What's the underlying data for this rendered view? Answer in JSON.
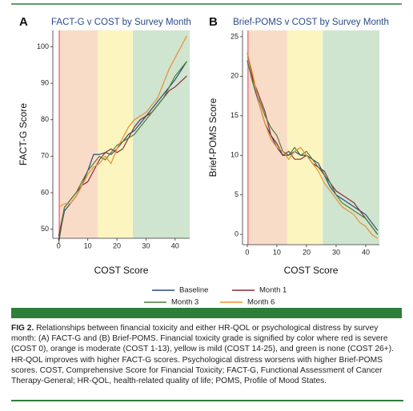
{
  "chart_data": [
    {
      "type": "line",
      "panel": "A",
      "title": "FACT-G v COST by Survey Month",
      "x_label": "COST Score",
      "y_label": "FACT-G Score",
      "x": [
        0,
        2,
        4,
        6,
        8,
        10,
        12,
        14,
        16,
        18,
        20,
        22,
        24,
        26,
        28,
        30,
        32,
        34,
        36,
        38,
        40,
        42,
        44
      ],
      "series": [
        {
          "name": "Baseline",
          "color": "#2c4a7a",
          "values": [
            47,
            55,
            57,
            59,
            62,
            66,
            70.5,
            70.5,
            71,
            70.5,
            72,
            74,
            76,
            77,
            79,
            81,
            83,
            85,
            87,
            89,
            91,
            93.5,
            96
          ]
        },
        {
          "name": "Month 1",
          "color": "#8b2a3a",
          "values": [
            48,
            56,
            58,
            60,
            62,
            63,
            66,
            69,
            71,
            72,
            71,
            72,
            75,
            78,
            80,
            81,
            82,
            84,
            86,
            88,
            89,
            90.5,
            92
          ]
        },
        {
          "name": "Month 3",
          "color": "#4f7d3a",
          "values": [
            46,
            56,
            58,
            60,
            63,
            66,
            68,
            70,
            69,
            71,
            73,
            74,
            75,
            76,
            78,
            80,
            82,
            84,
            86,
            89,
            92,
            94,
            96
          ]
        },
        {
          "name": "Month 6",
          "color": "#e8902e",
          "values": [
            56,
            57,
            57,
            59,
            62,
            65,
            67,
            68,
            70,
            68,
            72,
            75,
            78,
            80,
            81,
            82,
            84,
            86,
            90,
            94,
            97,
            100,
            103
          ]
        }
      ],
      "regions": [
        {
          "from": 0,
          "to": 0.5,
          "color": "#f07f8f"
        },
        {
          "from": 0.5,
          "to": 13.5,
          "color": "#f9dcc8"
        },
        {
          "from": 13.5,
          "to": 25.5,
          "color": "#fcf5c0"
        },
        {
          "from": 25.5,
          "to": 45,
          "color": "#cfe5cf"
        }
      ],
      "xlim": [
        -2,
        45
      ],
      "ylim": [
        47.5,
        104.5
      ],
      "xticks": [
        0,
        10,
        20,
        30,
        40
      ],
      "yticks": [
        50,
        60,
        70,
        80,
        90,
        100
      ]
    },
    {
      "type": "line",
      "panel": "B",
      "title": "Brief-POMS v COST by Survey Month",
      "x_label": "COST Score",
      "y_label": "Brief-POMS Score",
      "x": [
        0,
        2,
        4,
        6,
        8,
        10,
        12,
        14,
        16,
        18,
        20,
        22,
        24,
        26,
        28,
        30,
        32,
        34,
        36,
        38,
        40,
        42,
        44
      ],
      "series": [
        {
          "name": "Baseline",
          "color": "#2c4a7a",
          "values": [
            22,
            19,
            16.5,
            14,
            12.5,
            11,
            10,
            10,
            10.5,
            10,
            10,
            9.5,
            9,
            7.5,
            6,
            5,
            4.5,
            4,
            3.5,
            3,
            2.5,
            1.5,
            0.5
          ]
        },
        {
          "name": "Month 1",
          "color": "#8b2a3a",
          "values": [
            23,
            19.5,
            17.5,
            15.5,
            12.5,
            11.5,
            10,
            10.5,
            9.5,
            9.5,
            10,
            9,
            8.5,
            8,
            6.5,
            5.5,
            5,
            4.5,
            4,
            3,
            2,
            1,
            0
          ]
        },
        {
          "name": "Month 3",
          "color": "#4f7d3a",
          "values": [
            22,
            19,
            17,
            15,
            13.5,
            12.5,
            10.5,
            10,
            11,
            10,
            10.5,
            9.5,
            8.5,
            7.5,
            6.5,
            5,
            4,
            3.5,
            3,
            2.5,
            2,
            1,
            0
          ]
        },
        {
          "name": "Month 6",
          "color": "#e8902e",
          "values": [
            23,
            20,
            16.5,
            14,
            12,
            11,
            10.5,
            9.5,
            10.5,
            11,
            10,
            9,
            8,
            6.5,
            5.5,
            4.5,
            3.5,
            3,
            2.5,
            1.5,
            1,
            0,
            -0.5
          ]
        }
      ],
      "regions": [
        {
          "from": 0,
          "to": 0.5,
          "color": "#f07f8f"
        },
        {
          "from": 0.5,
          "to": 13.5,
          "color": "#f9dcc8"
        },
        {
          "from": 13.5,
          "to": 25.5,
          "color": "#fcf5c0"
        },
        {
          "from": 25.5,
          "to": 44.6,
          "color": "#cfe5cf"
        }
      ],
      "xlim": [
        -1.6,
        44.6
      ],
      "ylim": [
        -1.3,
        25.8
      ],
      "xticks": [
        0,
        10,
        20,
        30,
        40
      ],
      "yticks": [
        0,
        5,
        10,
        15,
        20,
        25
      ]
    }
  ],
  "caption": {
    "label": "FIG 2.",
    "text": "Relationships between financial toxicity and either HR-QOL or psychological distress by survey month: (A) FACT-G and (B) Brief-POMS. Financial toxicity grade is signified by color where red is severe (COST 0), orange is moderate (COST 1-13), yellow is mild (COST 14-25), and green is none (COST 26+). HR-QOL improves with higher FACT-G scores. Psychological distress worsens with higher Brief-POMS scores. COST, Comprehensive Score for Financial Toxicity; FACT-G, Functional Assessment of Cancer Therapy-General; HR-QOL, health-related quality of life; POMS, Profile of Mood States."
  }
}
